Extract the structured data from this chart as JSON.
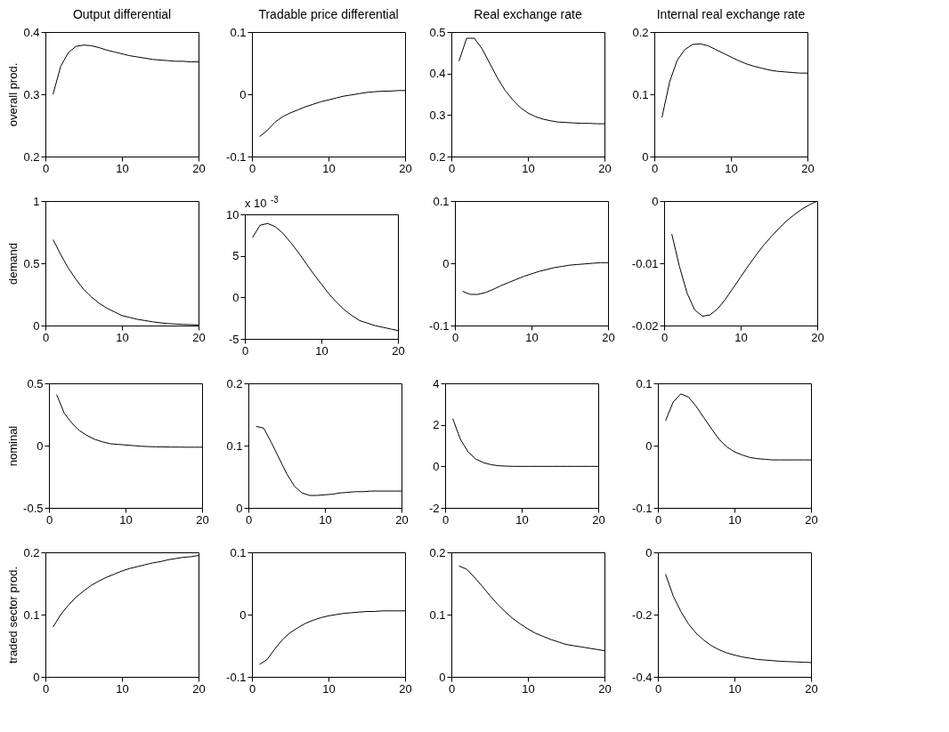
{
  "chart_data": [
    {
      "type": "line",
      "title": "Output differential",
      "ylabel": "overall prod.",
      "x": [
        1,
        2,
        3,
        4,
        5,
        6,
        7,
        8,
        9,
        10,
        11,
        12,
        13,
        14,
        15,
        16,
        17,
        18,
        19,
        20
      ],
      "values": [
        0.3,
        0.345,
        0.367,
        0.377,
        0.379,
        0.378,
        0.375,
        0.371,
        0.368,
        0.365,
        0.362,
        0.36,
        0.358,
        0.356,
        0.355,
        0.354,
        0.353,
        0.353,
        0.352,
        0.352
      ],
      "color": "#000000",
      "xlim": [
        0,
        20
      ],
      "xticks": [
        0,
        10,
        20
      ],
      "ylim": [
        0.2,
        0.4
      ],
      "yticks": [
        0.2,
        0.3,
        0.4
      ]
    },
    {
      "type": "line",
      "title": "Tradable price differential",
      "x": [
        1,
        2,
        3,
        4,
        5,
        6,
        7,
        8,
        9,
        10,
        11,
        12,
        13,
        14,
        15,
        16,
        17,
        18,
        19,
        20
      ],
      "values": [
        -0.068,
        -0.058,
        -0.045,
        -0.036,
        -0.03,
        -0.025,
        -0.02,
        -0.016,
        -0.012,
        -0.009,
        -0.006,
        -0.003,
        -0.001,
        0.001,
        0.003,
        0.004,
        0.005,
        0.005,
        0.006,
        0.006
      ],
      "color": "#000000",
      "xlim": [
        0,
        20
      ],
      "xticks": [
        0,
        10,
        20
      ],
      "ylim": [
        -0.1,
        0.1
      ],
      "yticks": [
        -0.1,
        0,
        0.1
      ]
    },
    {
      "type": "line",
      "title": "Real exchange rate",
      "x": [
        1,
        2,
        3,
        4,
        5,
        6,
        7,
        8,
        9,
        10,
        11,
        12,
        13,
        14,
        15,
        16,
        17,
        18,
        19,
        20
      ],
      "values": [
        0.43,
        0.485,
        0.485,
        0.46,
        0.425,
        0.39,
        0.36,
        0.337,
        0.318,
        0.305,
        0.296,
        0.29,
        0.286,
        0.283,
        0.282,
        0.281,
        0.28,
        0.28,
        0.279,
        0.279
      ],
      "color": "#000000",
      "xlim": [
        0,
        20
      ],
      "xticks": [
        0,
        10,
        20
      ],
      "ylim": [
        0.2,
        0.5
      ],
      "yticks": [
        0.2,
        0.3,
        0.4,
        0.5
      ]
    },
    {
      "type": "line",
      "title": "Internal real exchange rate",
      "x": [
        1,
        2,
        3,
        4,
        5,
        6,
        7,
        8,
        9,
        10,
        11,
        12,
        13,
        14,
        15,
        16,
        17,
        18,
        19,
        20
      ],
      "values": [
        0.063,
        0.12,
        0.155,
        0.172,
        0.18,
        0.181,
        0.178,
        0.172,
        0.166,
        0.16,
        0.154,
        0.149,
        0.145,
        0.142,
        0.139,
        0.137,
        0.136,
        0.135,
        0.134,
        0.134
      ],
      "color": "#000000",
      "xlim": [
        0,
        20
      ],
      "xticks": [
        0,
        10,
        20
      ],
      "ylim": [
        0,
        0.2
      ],
      "yticks": [
        0,
        0.1,
        0.2
      ]
    },
    {
      "type": "line",
      "ylabel": "demand",
      "x": [
        1,
        2,
        3,
        4,
        5,
        6,
        7,
        8,
        9,
        10,
        11,
        12,
        13,
        14,
        15,
        16,
        17,
        18,
        19,
        20
      ],
      "values": [
        0.69,
        0.57,
        0.46,
        0.37,
        0.29,
        0.23,
        0.18,
        0.14,
        0.11,
        0.08,
        0.065,
        0.05,
        0.04,
        0.03,
        0.022,
        0.016,
        0.012,
        0.009,
        0.007,
        0.005
      ],
      "color": "#000000",
      "xlim": [
        0,
        20
      ],
      "xticks": [
        0,
        10,
        20
      ],
      "ylim": [
        0,
        1
      ],
      "yticks": [
        0,
        0.5,
        1
      ]
    },
    {
      "type": "line",
      "annotations": [
        "x 10$^{-3}$"
      ],
      "x": [
        1,
        2,
        3,
        4,
        5,
        6,
        7,
        8,
        9,
        10,
        11,
        12,
        13,
        14,
        15,
        16,
        17,
        18,
        19,
        20
      ],
      "values": [
        7.2,
        8.7,
        8.9,
        8.5,
        7.7,
        6.6,
        5.4,
        4.1,
        2.8,
        1.6,
        0.4,
        -0.6,
        -1.5,
        -2.2,
        -2.8,
        -3.1,
        -3.4,
        -3.6,
        -3.8,
        -4
      ],
      "color": "#000000",
      "xlim": [
        0,
        20
      ],
      "xticks": [
        0,
        10,
        20
      ],
      "ylim": [
        -5,
        10
      ],
      "yticks": [
        -5,
        0,
        5,
        10
      ]
    },
    {
      "type": "line",
      "x": [
        1,
        2,
        3,
        4,
        5,
        6,
        7,
        8,
        9,
        10,
        11,
        12,
        13,
        14,
        15,
        16,
        17,
        18,
        19,
        20
      ],
      "values": [
        -0.045,
        -0.05,
        -0.05,
        -0.047,
        -0.042,
        -0.036,
        -0.031,
        -0.026,
        -0.021,
        -0.017,
        -0.013,
        -0.01,
        -0.007,
        -0.005,
        -0.003,
        -0.002,
        -0.001,
        0,
        0.001,
        0.001
      ],
      "color": "#000000",
      "xlim": [
        0,
        20
      ],
      "xticks": [
        0,
        10,
        20
      ],
      "ylim": [
        -0.1,
        0.1
      ],
      "yticks": [
        -0.1,
        0,
        0.1
      ]
    },
    {
      "type": "line",
      "x": [
        1,
        2,
        3,
        4,
        5,
        6,
        7,
        8,
        9,
        10,
        11,
        12,
        13,
        14,
        15,
        16,
        17,
        18,
        19,
        20
      ],
      "values": [
        -0.0053,
        -0.0105,
        -0.0148,
        -0.0175,
        -0.0185,
        -0.0183,
        -0.0173,
        -0.0158,
        -0.014,
        -0.0122,
        -0.0104,
        -0.0087,
        -0.0071,
        -0.0057,
        -0.0044,
        -0.0032,
        -0.0022,
        -0.0013,
        -0.0006,
        0
      ],
      "color": "#000000",
      "xlim": [
        0,
        20
      ],
      "xticks": [
        0,
        10,
        20
      ],
      "ylim": [
        -0.02,
        0
      ],
      "yticks": [
        -0.02,
        -0.01,
        0
      ]
    },
    {
      "type": "line",
      "ylabel": "nominal",
      "x": [
        1,
        2,
        3,
        4,
        5,
        6,
        7,
        8,
        9,
        10,
        11,
        12,
        13,
        14,
        15,
        16,
        17,
        18,
        19,
        20
      ],
      "values": [
        0.41,
        0.26,
        0.18,
        0.12,
        0.08,
        0.05,
        0.03,
        0.015,
        0.01,
        0.005,
        0,
        -0.005,
        -0.008,
        -0.01,
        -0.01,
        -0.012,
        -0.012,
        -0.013,
        -0.013,
        -0.013
      ],
      "color": "#000000",
      "xlim": [
        0,
        20
      ],
      "xticks": [
        0,
        10,
        20
      ],
      "ylim": [
        -0.5,
        0.5
      ],
      "yticks": [
        -0.5,
        0,
        0.5
      ]
    },
    {
      "type": "line",
      "x": [
        1,
        2,
        3,
        4,
        5,
        6,
        7,
        8,
        9,
        10,
        11,
        12,
        13,
        14,
        15,
        16,
        17,
        18,
        19,
        20
      ],
      "values": [
        0.131,
        0.128,
        0.105,
        0.08,
        0.055,
        0.035,
        0.024,
        0.02,
        0.02,
        0.021,
        0.022,
        0.024,
        0.025,
        0.026,
        0.026,
        0.027,
        0.027,
        0.027,
        0.027,
        0.027
      ],
      "color": "#000000",
      "xlim": [
        0,
        20
      ],
      "xticks": [
        0,
        10,
        20
      ],
      "ylim": [
        0,
        0.2
      ],
      "yticks": [
        0,
        0.1,
        0.2
      ]
    },
    {
      "type": "line",
      "x": [
        1,
        2,
        3,
        4,
        5,
        6,
        7,
        8,
        9,
        10,
        11,
        12,
        13,
        14,
        15,
        16,
        17,
        18,
        19,
        20
      ],
      "values": [
        2.3,
        1.3,
        0.7,
        0.35,
        0.18,
        0.08,
        0.03,
        0.01,
        0,
        0,
        0,
        0,
        0,
        0,
        0,
        0,
        0,
        0,
        0,
        0
      ],
      "color": "#000000",
      "xlim": [
        0,
        20
      ],
      "xticks": [
        0,
        10,
        20
      ],
      "ylim": [
        -2,
        4
      ],
      "yticks": [
        -2,
        0,
        2,
        4
      ]
    },
    {
      "type": "line",
      "x": [
        1,
        2,
        3,
        4,
        5,
        6,
        7,
        8,
        9,
        10,
        11,
        12,
        13,
        14,
        15,
        16,
        17,
        18,
        19,
        20
      ],
      "values": [
        0.04,
        0.07,
        0.083,
        0.078,
        0.063,
        0.045,
        0.027,
        0.01,
        -0.002,
        -0.01,
        -0.015,
        -0.019,
        -0.021,
        -0.022,
        -0.023,
        -0.023,
        -0.023,
        -0.023,
        -0.023,
        -0.023
      ],
      "color": "#000000",
      "xlim": [
        0,
        20
      ],
      "xticks": [
        0,
        10,
        20
      ],
      "ylim": [
        -0.1,
        0.1
      ],
      "yticks": [
        -0.1,
        0,
        0.1
      ]
    },
    {
      "type": "line",
      "ylabel": "traded sector prod.",
      "x": [
        1,
        2,
        3,
        4,
        5,
        6,
        7,
        8,
        9,
        10,
        11,
        12,
        13,
        14,
        15,
        16,
        17,
        18,
        19,
        20
      ],
      "values": [
        0.08,
        0.1,
        0.115,
        0.128,
        0.138,
        0.147,
        0.154,
        0.16,
        0.165,
        0.17,
        0.174,
        0.177,
        0.18,
        0.183,
        0.185,
        0.188,
        0.19,
        0.192,
        0.193,
        0.195
      ],
      "color": "#000000",
      "xlim": [
        0,
        20
      ],
      "xticks": [
        0,
        10,
        20
      ],
      "ylim": [
        0,
        0.2
      ],
      "yticks": [
        0,
        0.1,
        0.2
      ]
    },
    {
      "type": "line",
      "x": [
        1,
        2,
        3,
        4,
        5,
        6,
        7,
        8,
        9,
        10,
        11,
        12,
        13,
        14,
        15,
        16,
        17,
        18,
        19,
        20
      ],
      "values": [
        -0.08,
        -0.072,
        -0.055,
        -0.04,
        -0.029,
        -0.021,
        -0.014,
        -0.009,
        -0.005,
        -0.002,
        0,
        0.002,
        0.003,
        0.004,
        0.005,
        0.005,
        0.006,
        0.006,
        0.006,
        0.006
      ],
      "color": "#000000",
      "xlim": [
        0,
        20
      ],
      "xticks": [
        0,
        10,
        20
      ],
      "ylim": [
        -0.1,
        0.1
      ],
      "yticks": [
        -0.1,
        0,
        0.1
      ]
    },
    {
      "type": "line",
      "x": [
        1,
        2,
        3,
        4,
        5,
        6,
        7,
        8,
        9,
        10,
        11,
        12,
        13,
        14,
        15,
        16,
        17,
        18,
        19,
        20
      ],
      "values": [
        0.178,
        0.173,
        0.16,
        0.146,
        0.131,
        0.117,
        0.105,
        0.094,
        0.085,
        0.077,
        0.07,
        0.065,
        0.06,
        0.056,
        0.052,
        0.05,
        0.048,
        0.046,
        0.044,
        0.042
      ],
      "color": "#000000",
      "xlim": [
        0,
        20
      ],
      "xticks": [
        0,
        10,
        20
      ],
      "ylim": [
        0,
        0.2
      ],
      "yticks": [
        0,
        0.1,
        0.2
      ]
    },
    {
      "type": "line",
      "x": [
        1,
        2,
        3,
        4,
        5,
        6,
        7,
        8,
        9,
        10,
        11,
        12,
        13,
        14,
        15,
        16,
        17,
        18,
        19,
        20
      ],
      "values": [
        -0.07,
        -0.14,
        -0.19,
        -0.23,
        -0.26,
        -0.282,
        -0.3,
        -0.313,
        -0.323,
        -0.33,
        -0.336,
        -0.34,
        -0.344,
        -0.346,
        -0.348,
        -0.35,
        -0.351,
        -0.352,
        -0.353,
        -0.354
      ],
      "color": "#000000",
      "xlim": [
        0,
        20
      ],
      "xticks": [
        0,
        10,
        20
      ],
      "ylim": [
        -0.4,
        0
      ],
      "yticks": [
        -0.4,
        -0.2,
        0
      ]
    }
  ]
}
